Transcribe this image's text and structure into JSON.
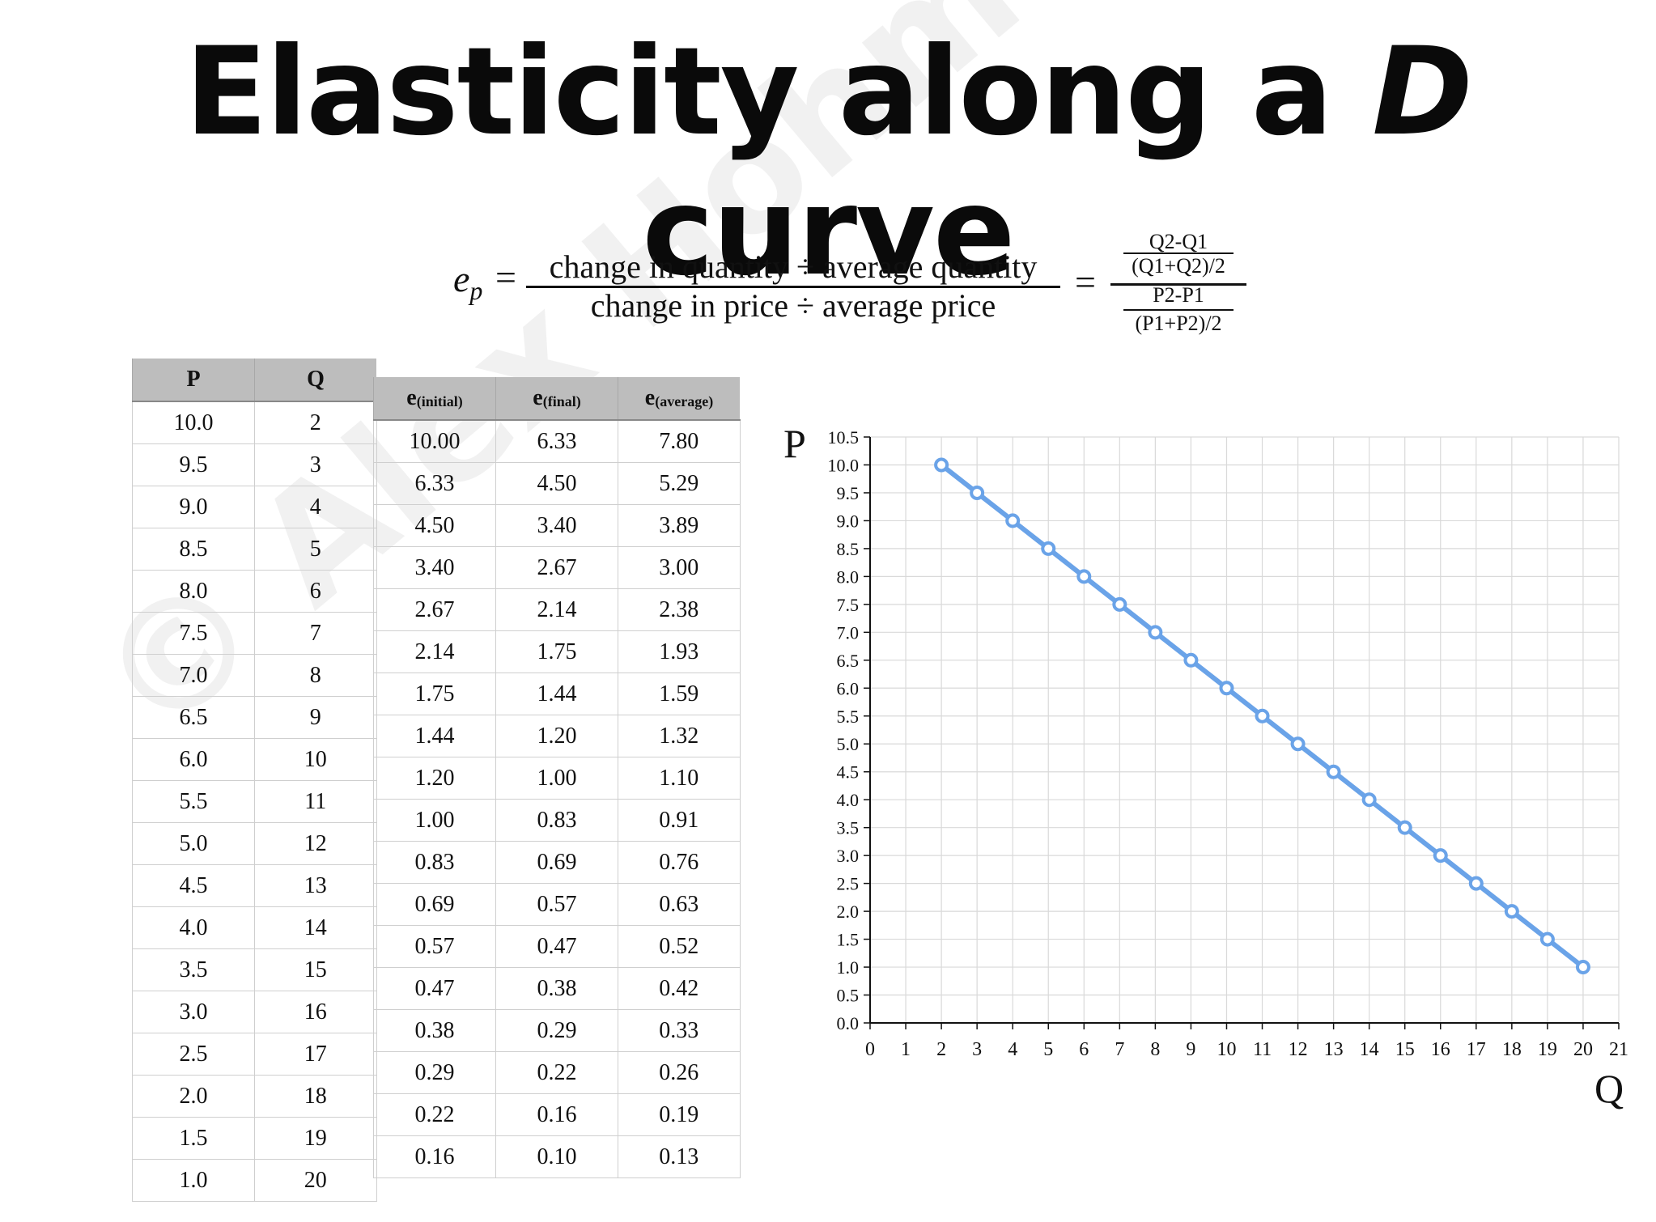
{
  "title": {
    "part1": "Elasticity along a ",
    "italic": "D",
    "part2": " curve"
  },
  "watermark": "© Alex Hohmann",
  "formula": {
    "lhs": "ep",
    "lhs_main": "e",
    "lhs_sub": "p",
    "equals": "=",
    "numerator": "change in quantity ÷ average quantity",
    "denominator": "change in price ÷ average price",
    "q_num": "Q2-Q1",
    "q_den": "(Q1+Q2)/2",
    "p_num": "P2-P1",
    "p_den": "(P1+P2)/2"
  },
  "pq_table": {
    "headers": [
      "P",
      "Q"
    ],
    "rows": [
      [
        "10.0",
        "2"
      ],
      [
        "9.5",
        "3"
      ],
      [
        "9.0",
        "4"
      ],
      [
        "8.5",
        "5"
      ],
      [
        "8.0",
        "6"
      ],
      [
        "7.5",
        "7"
      ],
      [
        "7.0",
        "8"
      ],
      [
        "6.5",
        "9"
      ],
      [
        "6.0",
        "10"
      ],
      [
        "5.5",
        "11"
      ],
      [
        "5.0",
        "12"
      ],
      [
        "4.5",
        "13"
      ],
      [
        "4.0",
        "14"
      ],
      [
        "3.5",
        "15"
      ],
      [
        "3.0",
        "16"
      ],
      [
        "2.5",
        "17"
      ],
      [
        "2.0",
        "18"
      ],
      [
        "1.5",
        "19"
      ],
      [
        "1.0",
        "20"
      ]
    ]
  },
  "e_table": {
    "headers": [
      {
        "main": "e",
        "sub": "(initial)"
      },
      {
        "main": "e",
        "sub": "(final)"
      },
      {
        "main": "e",
        "sub": "(average)"
      }
    ],
    "rows": [
      [
        "10.00",
        "6.33",
        "7.80"
      ],
      [
        "6.33",
        "4.50",
        "5.29"
      ],
      [
        "4.50",
        "3.40",
        "3.89"
      ],
      [
        "3.40",
        "2.67",
        "3.00"
      ],
      [
        "2.67",
        "2.14",
        "2.38"
      ],
      [
        "2.14",
        "1.75",
        "1.93"
      ],
      [
        "1.75",
        "1.44",
        "1.59"
      ],
      [
        "1.44",
        "1.20",
        "1.32"
      ],
      [
        "1.20",
        "1.00",
        "1.10"
      ],
      [
        "1.00",
        "0.83",
        "0.91"
      ],
      [
        "0.83",
        "0.69",
        "0.76"
      ],
      [
        "0.69",
        "0.57",
        "0.63"
      ],
      [
        "0.57",
        "0.47",
        "0.52"
      ],
      [
        "0.47",
        "0.38",
        "0.42"
      ],
      [
        "0.38",
        "0.29",
        "0.33"
      ],
      [
        "0.29",
        "0.22",
        "0.26"
      ],
      [
        "0.22",
        "0.16",
        "0.19"
      ],
      [
        "0.16",
        "0.10",
        "0.13"
      ]
    ]
  },
  "chart_data": {
    "type": "line",
    "xlabel": "Q",
    "ylabel": "P",
    "xlim": [
      0,
      21
    ],
    "ylim": [
      0,
      10.5
    ],
    "xticks": [
      "0",
      "1",
      "2",
      "3",
      "4",
      "5",
      "6",
      "7",
      "8",
      "9",
      "10",
      "11",
      "12",
      "13",
      "14",
      "15",
      "16",
      "17",
      "18",
      "19",
      "20",
      "21"
    ],
    "yticks": [
      "0.0",
      "0.5",
      "1.0",
      "1.5",
      "2.0",
      "2.5",
      "3.0",
      "3.5",
      "4.0",
      "4.5",
      "5.0",
      "5.5",
      "6.0",
      "6.5",
      "7.0",
      "7.5",
      "8.0",
      "8.5",
      "9.0",
      "9.5",
      "10.0",
      "10.5"
    ],
    "grid": true,
    "series": [
      {
        "x": [
          2,
          3,
          4,
          5,
          6,
          7,
          8,
          9,
          10,
          11,
          12,
          13,
          14,
          15,
          16,
          17,
          18,
          19,
          20
        ],
        "y": [
          10.0,
          9.5,
          9.0,
          8.5,
          8.0,
          7.5,
          7.0,
          6.5,
          6.0,
          5.5,
          5.0,
          4.5,
          4.0,
          3.5,
          3.0,
          2.5,
          2.0,
          1.5,
          1.0
        ]
      }
    ],
    "color": "#6aa3e8"
  }
}
